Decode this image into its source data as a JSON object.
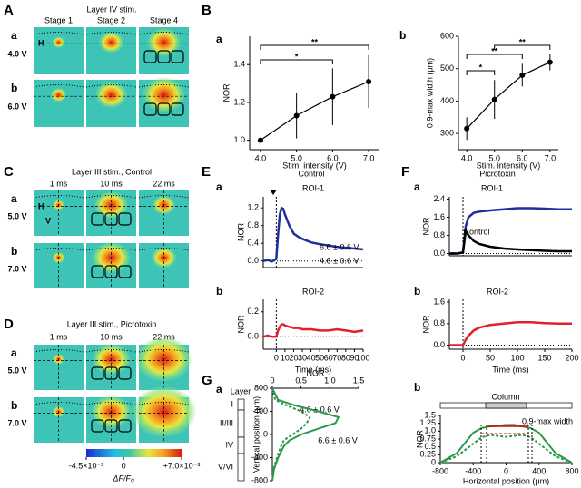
{
  "panels": {
    "A": "A",
    "B": "B",
    "C": "C",
    "D": "D",
    "E": "E",
    "F": "F",
    "G": "G"
  },
  "sub_labels": {
    "a": "a",
    "b": "b"
  },
  "imaging": [
    {
      "title": "Layer IV stim.",
      "columns": [
        "Stage 1",
        "Stage 2",
        "Stage 4"
      ],
      "rows": [
        "4.0 V",
        "6.0 V"
      ],
      "markers": [
        "H"
      ]
    },
    {
      "title": "Layer III stim., Control",
      "columns": [
        "1 ms",
        "10 ms",
        "22 ms"
      ],
      "rows": [
        "5.0 V",
        "7.0 V"
      ],
      "markers": [
        "H",
        "V"
      ]
    },
    {
      "title": "Layer III stim., Picrotoxin",
      "columns": [
        "1 ms",
        "10 ms",
        "22 ms"
      ],
      "rows": [
        "5.0 V",
        "7.0 V"
      ]
    }
  ],
  "colorbar": {
    "lim": [
      -0.0045,
      0.007
    ],
    "ticks": [
      {
        "value": -0.0045,
        "label": "-4.5×10⁻³"
      },
      0,
      {
        "value": 0.007,
        "label": "+7.0×10⁻³"
      }
    ],
    "label": "ΔF/F₀"
  },
  "chart_data": [
    {
      "type": "line",
      "x": [
        4,
        5,
        6,
        7
      ],
      "series": [
        {
          "color": "#000000",
          "values": [
            1.0,
            1.13,
            1.23,
            1.31
          ],
          "errors": [
            0,
            0.12,
            0.15,
            0.14
          ]
        }
      ],
      "xlim": [
        3.7,
        7.3
      ],
      "ylim": [
        0.95,
        1.55
      ],
      "xticks": [
        {
          "value": 4,
          "label": "4.0"
        },
        {
          "value": 5,
          "label": "5.0"
        },
        {
          "value": 6,
          "label": "6.0"
        },
        {
          "value": 7,
          "label": "7.0"
        }
      ],
      "yticks": [
        {
          "value": 1,
          "label": "1.0"
        },
        {
          "value": 1.2,
          "label": "1.2"
        },
        {
          "value": 1.4,
          "label": "1.4"
        }
      ],
      "xlabel": "Stim. intensity (V)",
      "ylabel": "NOR",
      "brackets": [
        {
          "from": 4,
          "to": 6,
          "label": "*"
        },
        {
          "from": 4,
          "to": 7,
          "label": "**"
        }
      ]
    },
    {
      "type": "line",
      "x": [
        4,
        5,
        6,
        7
      ],
      "series": [
        {
          "color": "#000000",
          "values": [
            315,
            405,
            480,
            520
          ],
          "errors": [
            35,
            60,
            35,
            25
          ]
        }
      ],
      "xlim": [
        3.7,
        7.3
      ],
      "ylim": [
        250,
        600
      ],
      "xticks": [
        {
          "value": 4,
          "label": "4.0"
        },
        {
          "value": 5,
          "label": "5.0"
        },
        {
          "value": 6,
          "label": "6.0"
        },
        {
          "value": 7,
          "label": "7.0"
        }
      ],
      "yticks": [
        300,
        400,
        500,
        600
      ],
      "xlabel": "Stim. intensity (V)",
      "ylabel": "0.9-max width (μm)",
      "brackets": [
        {
          "from": 5,
          "to": 7,
          "label": "**"
        },
        {
          "from": 4,
          "to": 6,
          "label": "**"
        },
        {
          "from": 4,
          "to": 5,
          "label": "*"
        }
      ]
    },
    {
      "type": "line",
      "title": "Control",
      "subtitle": "ROI-1",
      "x": [
        -15,
        -10,
        -5,
        0,
        2,
        4,
        6,
        8,
        10,
        15,
        20,
        25,
        30,
        40,
        50,
        60,
        70,
        80,
        90,
        100
      ],
      "series": [
        {
          "color": "#1f2f9f",
          "values": [
            0,
            0.02,
            -0.01,
            0.05,
            0.6,
            1.05,
            1.2,
            1.18,
            1.05,
            0.8,
            0.62,
            0.55,
            0.5,
            0.42,
            0.38,
            0.35,
            0.32,
            0.3,
            0.28,
            0.26
          ]
        }
      ],
      "xlim": [
        -15,
        100
      ],
      "ylim": [
        -0.15,
        1.45
      ],
      "yticks": [
        {
          "value": 0,
          "label": "0.0"
        },
        {
          "value": 0.4,
          "label": "0.4"
        },
        {
          "value": 0.8,
          "label": "0.8"
        },
        {
          "value": 1.2,
          "label": "1.2"
        }
      ],
      "ylabel": "NOR",
      "annotations": [
        "6.6 ± 0.6 V",
        "4.6 ± 0.6 V"
      ]
    },
    {
      "type": "line",
      "subtitle": "ROI-2",
      "x": [
        -15,
        -10,
        -5,
        0,
        2,
        4,
        6,
        8,
        10,
        15,
        20,
        25,
        30,
        40,
        50,
        60,
        70,
        80,
        90,
        100
      ],
      "series": [
        {
          "color": "#e0202a",
          "values": [
            0,
            0.01,
            0,
            0,
            0.05,
            0.08,
            0.1,
            0.1,
            0.09,
            0.08,
            0.07,
            0.07,
            0.06,
            0.06,
            0.05,
            0.05,
            0.06,
            0.05,
            0.04,
            0.05
          ]
        }
      ],
      "xlim": [
        -15,
        100
      ],
      "ylim": [
        -0.1,
        0.3
      ],
      "xticks": [
        0,
        10,
        20,
        30,
        40,
        50,
        60,
        70,
        80,
        90,
        100
      ],
      "yticks": [
        {
          "value": 0,
          "label": "0.0"
        },
        {
          "value": 0.2,
          "label": "0.2"
        }
      ],
      "xlabel": "Time (ms)",
      "ylabel": "NOR"
    },
    {
      "type": "line",
      "title": "Picrotoxin",
      "subtitle": "ROI-1",
      "x": [
        -25,
        -10,
        0,
        5,
        10,
        20,
        30,
        50,
        75,
        100,
        125,
        150,
        175,
        200
      ],
      "series": [
        {
          "color": "#1f2f9f",
          "values": [
            0,
            0,
            0.05,
            1.2,
            1.6,
            1.8,
            1.85,
            1.9,
            1.95,
            2.0,
            2.0,
            1.98,
            1.95,
            1.95
          ]
        },
        {
          "name": "Control",
          "color": "#000000",
          "values": [
            0,
            0,
            0.05,
            1.0,
            0.8,
            0.55,
            0.42,
            0.3,
            0.22,
            0.18,
            0.15,
            0.12,
            0.1,
            0.1
          ]
        }
      ],
      "xlim": [
        -25,
        200
      ],
      "ylim": [
        -0.1,
        2.5
      ],
      "yticks": [
        {
          "value": 0,
          "label": "0.0"
        },
        {
          "value": 0.8,
          "label": "0.8"
        },
        {
          "value": 1.6,
          "label": "1.6"
        },
        {
          "value": 2.4,
          "label": "2.4"
        }
      ],
      "ylabel": "NOR"
    },
    {
      "type": "line",
      "subtitle": "ROI-2",
      "x": [
        -25,
        -10,
        0,
        5,
        10,
        20,
        30,
        50,
        75,
        100,
        125,
        150,
        175,
        200
      ],
      "series": [
        {
          "color": "#e0202a",
          "values": [
            0,
            0,
            0,
            0.2,
            0.35,
            0.55,
            0.65,
            0.75,
            0.8,
            0.85,
            0.85,
            0.82,
            0.8,
            0.8
          ]
        }
      ],
      "xlim": [
        -25,
        200
      ],
      "ylim": [
        -0.15,
        1.7
      ],
      "xticks": [
        0,
        50,
        100,
        150,
        200
      ],
      "yticks": [
        {
          "value": 0,
          "label": "0.0"
        },
        {
          "value": 0.8,
          "label": "0.8"
        },
        {
          "value": 1.6,
          "label": "1.6"
        }
      ],
      "xlabel": "Time (ms)",
      "ylabel": "NOR"
    },
    {
      "type": "line",
      "y": [
        800,
        600,
        500,
        400,
        300,
        200,
        100,
        0,
        -100,
        -200,
        -400,
        -600,
        -800
      ],
      "series": [
        {
          "name": "4.6 ± 0.6 V",
          "color": "#2a9a4a",
          "line_style": "dashed",
          "values": [
            0,
            0.05,
            0.25,
            0.5,
            0.65,
            0.6,
            0.5,
            0.35,
            0.2,
            0.15,
            0.08,
            0.02,
            0
          ]
        },
        {
          "name": "6.6 ± 0.6 V",
          "color": "#2a9a4a",
          "line_style": "solid",
          "values": [
            0,
            0.1,
            0.4,
            0.8,
            1.15,
            1.1,
            0.8,
            0.5,
            0.3,
            0.2,
            0.1,
            0.03,
            0
          ]
        }
      ],
      "xlim": [
        0,
        1.5
      ],
      "ylim": [
        -800,
        800
      ],
      "xticks": [
        0,
        0.5,
        {
          "value": 1,
          "label": "1.0"
        },
        1.5
      ],
      "yticks": [
        -800,
        -400,
        0,
        400,
        800
      ],
      "xlabel": "NOR",
      "ylabel": "Vertical position (μm)",
      "layer_title": "Layer",
      "layers": [
        "I",
        "II/III",
        "IV",
        "V/VI"
      ]
    },
    {
      "type": "line",
      "x": [
        -800,
        -600,
        -400,
        -300,
        -200,
        -100,
        0,
        100,
        200,
        300,
        400,
        600,
        800
      ],
      "series": [
        {
          "color": "#2a9a4a",
          "line_style": "solid",
          "values": [
            0,
            0.3,
            0.95,
            1.1,
            1.15,
            1.17,
            1.2,
            1.2,
            1.15,
            1.1,
            0.95,
            0.3,
            0
          ]
        },
        {
          "color": "#2a9a4a",
          "line_style": "dashed",
          "values": [
            0,
            0.2,
            0.6,
            0.8,
            0.88,
            0.85,
            0.82,
            0.85,
            0.88,
            0.8,
            0.6,
            0.2,
            0
          ]
        }
      ],
      "xlim": [
        -800,
        800
      ],
      "ylim": [
        0,
        1.5
      ],
      "xticks": [
        -800,
        -400,
        0,
        400,
        800
      ],
      "yticks": [
        0,
        0.25,
        0.5,
        0.75,
        {
          "value": 1,
          "label": "1.0"
        },
        1.25,
        1.5
      ],
      "xlabel": "Horizontal position (μm)",
      "ylabel": "NOR",
      "column_title": "Column",
      "width_label": "0.9-max width"
    }
  ]
}
